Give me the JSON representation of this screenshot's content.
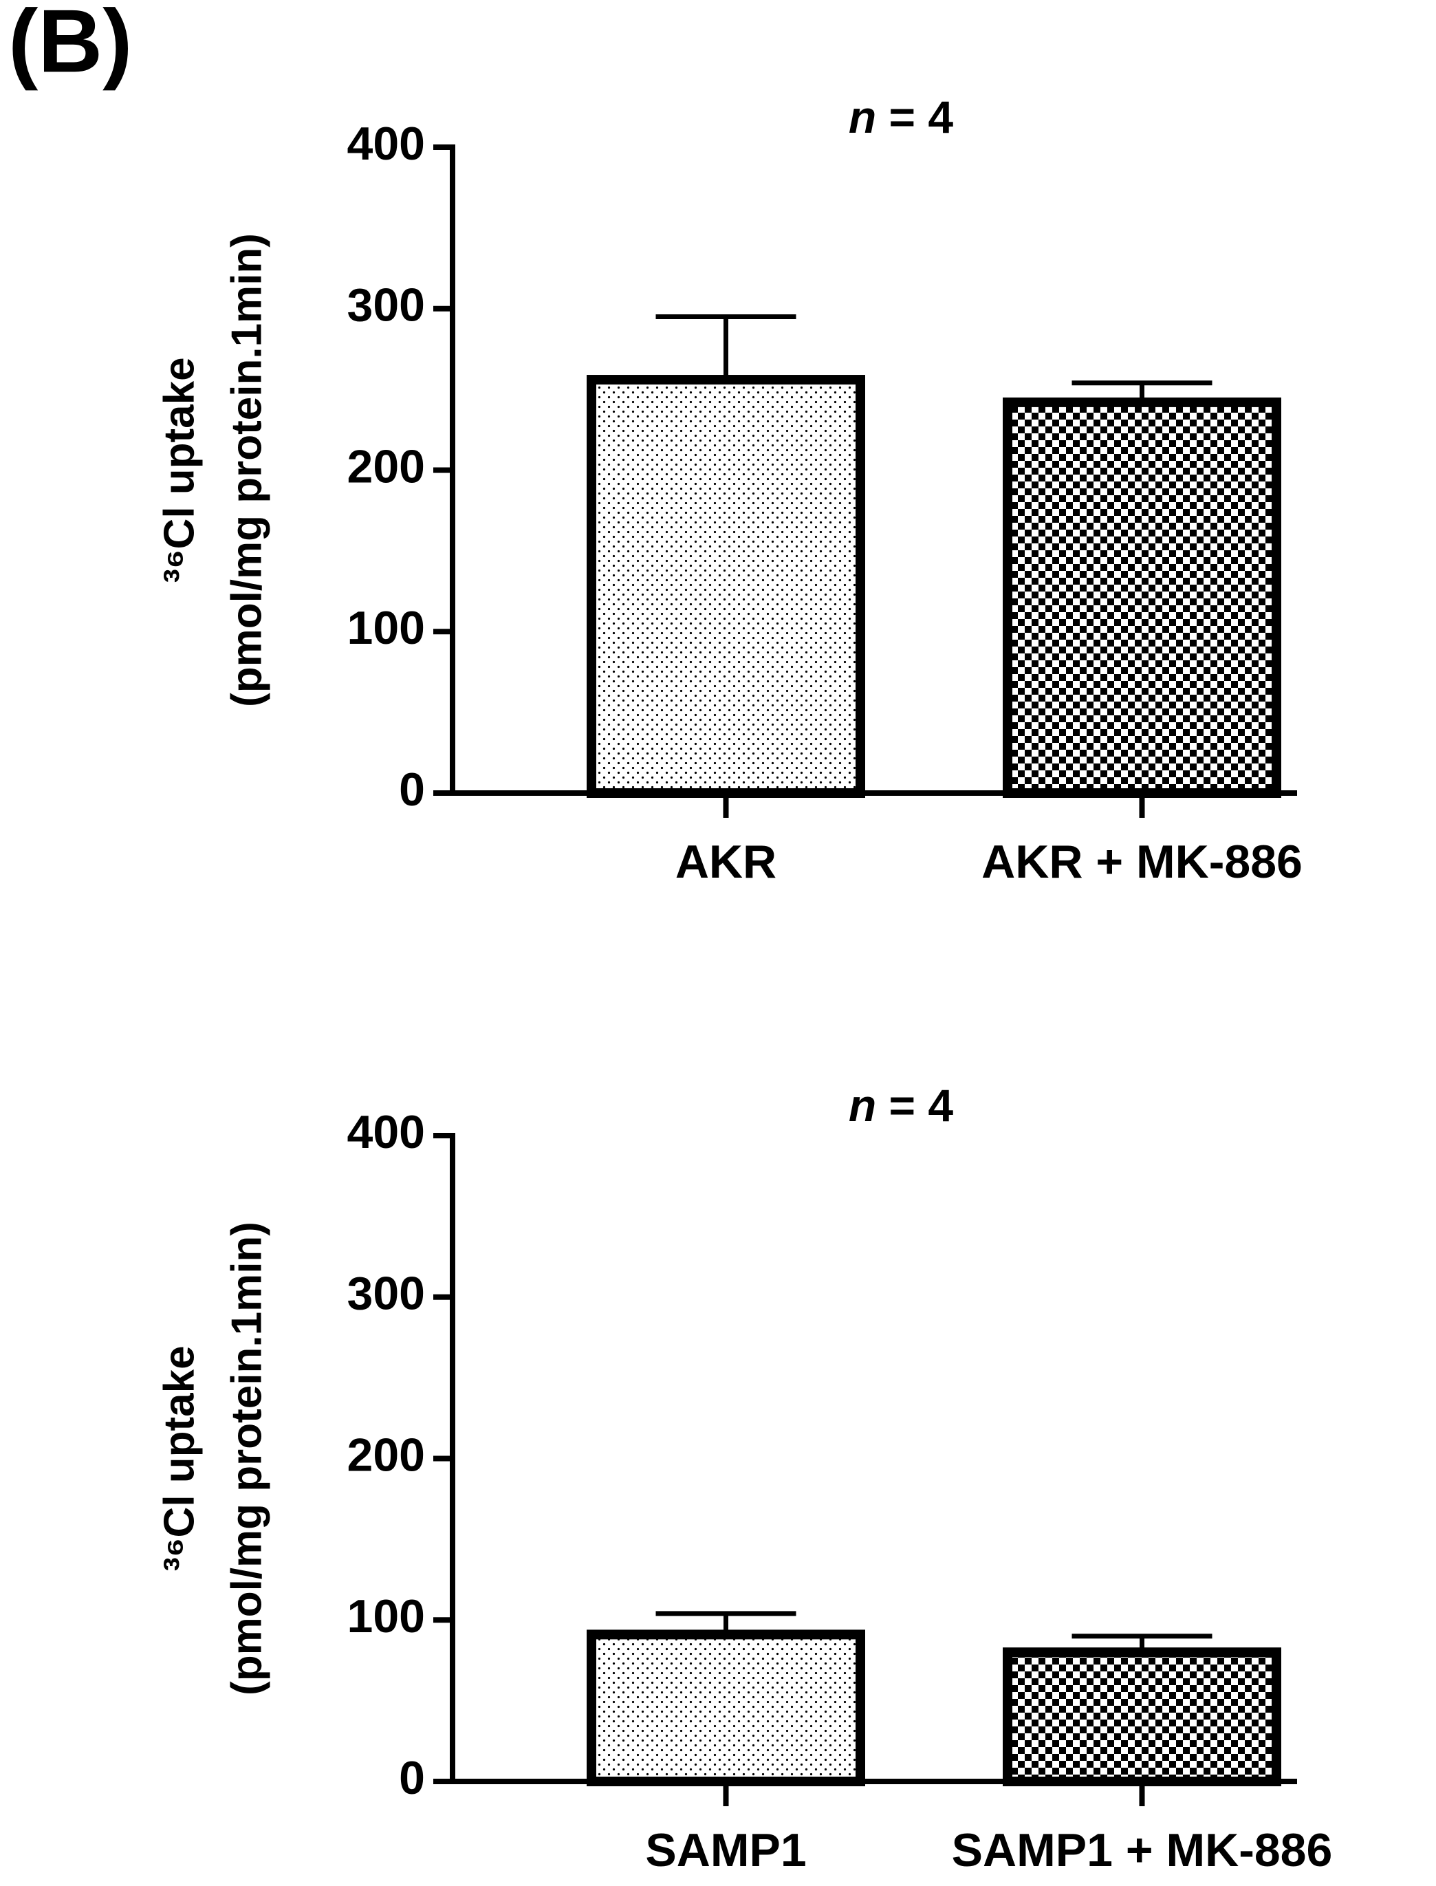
{
  "panel_label": "(B)",
  "chart_data": [
    {
      "type": "bar",
      "title": "n = 4",
      "ylabel": [
        "³⁶Cl uptake",
        "(pmol/mg protein.1min)"
      ],
      "categories": [
        "AKR",
        "AKR + MK-886"
      ],
      "values": [
        256,
        242
      ],
      "errors": [
        39,
        12
      ],
      "patterns": [
        "dots",
        "checker"
      ],
      "ylim": [
        0,
        400
      ],
      "yticks": [
        0,
        100,
        200,
        300,
        400
      ]
    },
    {
      "type": "bar",
      "title": "n = 4",
      "ylabel": [
        "³⁶Cl uptake",
        "(pmol/mg protein.1min)"
      ],
      "categories": [
        "SAMP1",
        "SAMP1 + MK-886"
      ],
      "values": [
        91,
        80
      ],
      "errors": [
        13,
        10
      ],
      "patterns": [
        "dots",
        "checker"
      ],
      "ylim": [
        0,
        400
      ],
      "yticks": [
        0,
        100,
        200,
        300,
        400
      ]
    }
  ]
}
